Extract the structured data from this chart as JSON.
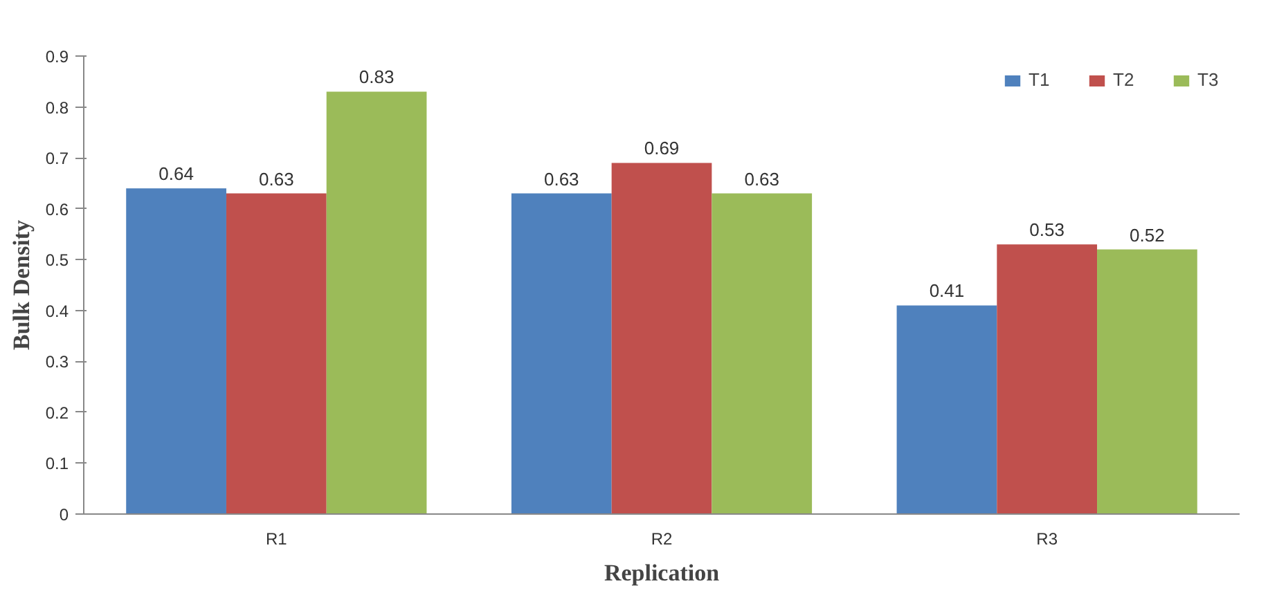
{
  "chart_data": {
    "type": "bar",
    "xlabel": "Replication",
    "ylabel": "Bulk Density",
    "categories": [
      "R1",
      "R2",
      "R3"
    ],
    "series": [
      {
        "name": "T1",
        "color": "#4f81bd",
        "values": [
          0.64,
          0.63,
          0.41
        ]
      },
      {
        "name": "T2",
        "color": "#c0504d",
        "values": [
          0.63,
          0.69,
          0.53
        ]
      },
      {
        "name": "T3",
        "color": "#9bbb59",
        "values": [
          0.83,
          0.63,
          0.52
        ]
      }
    ],
    "ylim": [
      0,
      0.9
    ],
    "yticks": [
      0,
      0.1,
      0.2,
      0.3,
      0.4,
      0.5,
      0.6,
      0.7,
      0.8,
      0.9
    ],
    "grid": false,
    "legend": "top right",
    "data_labels": true
  }
}
